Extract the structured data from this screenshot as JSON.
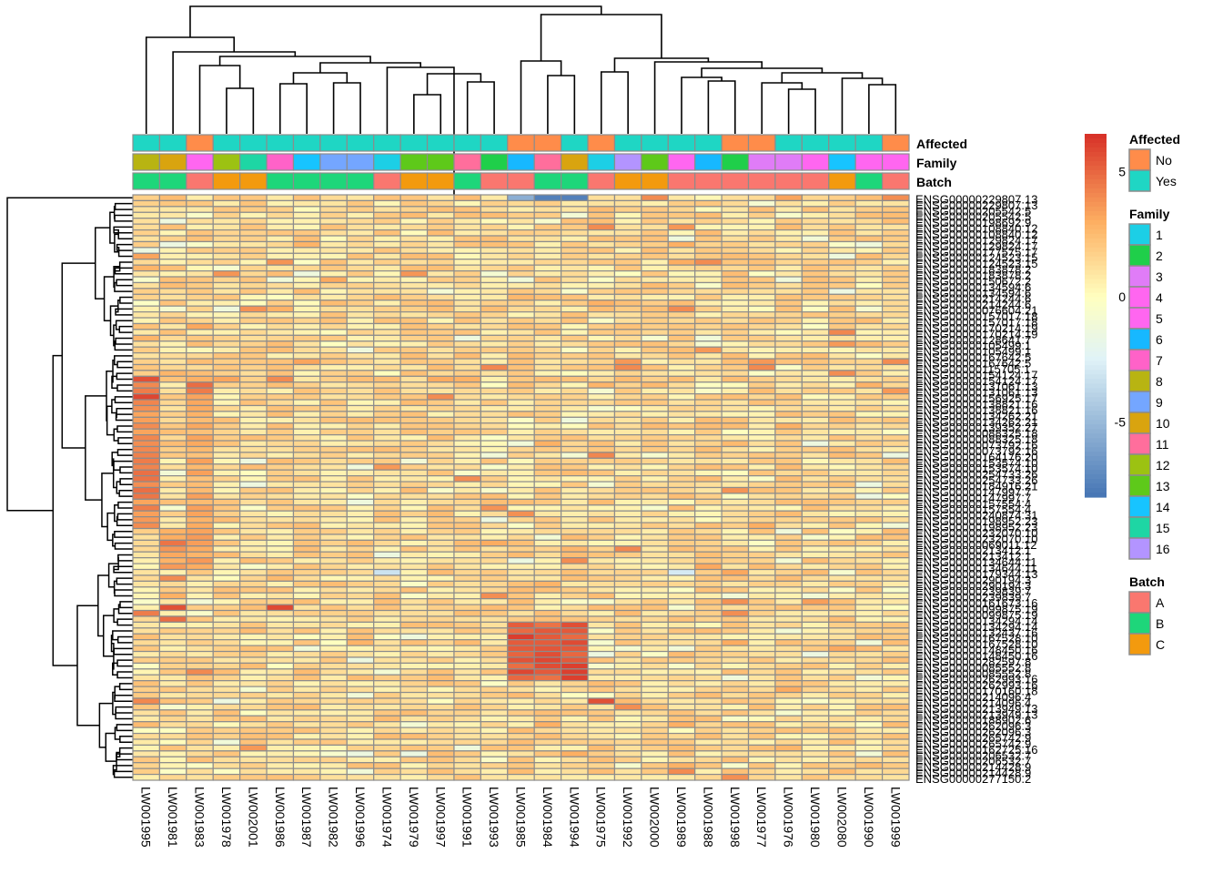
{
  "chart_data": {
    "type": "heatmap",
    "title": "",
    "columns": [
      "LW001995",
      "LW001981",
      "LW001983",
      "LW001978",
      "LW002001",
      "LW001986",
      "LW001987",
      "LW001982",
      "LW001996",
      "LW001974",
      "LW001979",
      "LW001997",
      "LW001991",
      "LW001993",
      "LW001985",
      "LW001984",
      "LW001994",
      "LW001975",
      "LW001992",
      "LW002000",
      "LW001989",
      "LW001988",
      "LW001998",
      "LW001977",
      "LW001976",
      "LW001980",
      "LW002080",
      "LW001990",
      "LW001999"
    ],
    "annotations": {
      "Affected": [
        "Yes",
        "Yes",
        "No",
        "Yes",
        "Yes",
        "Yes",
        "Yes",
        "Yes",
        "Yes",
        "Yes",
        "Yes",
        "Yes",
        "Yes",
        "Yes",
        "No",
        "No",
        "Yes",
        "No",
        "Yes",
        "Yes",
        "Yes",
        "Yes",
        "No",
        "No",
        "Yes",
        "Yes",
        "Yes",
        "Yes",
        "No"
      ],
      "Family": [
        "8",
        "10",
        "5",
        "12",
        "15",
        "7",
        "14",
        "9",
        "9",
        "1",
        "13",
        "13",
        "11",
        "2",
        "6",
        "11",
        "10",
        "1",
        "16",
        "13",
        "5",
        "6",
        "2",
        "3",
        "3",
        "4",
        "14",
        "5",
        "5"
      ],
      "Batch": [
        "B",
        "B",
        "A",
        "C",
        "C",
        "B",
        "B",
        "B",
        "B",
        "A",
        "C",
        "C",
        "B",
        "A",
        "A",
        "B",
        "B",
        "A",
        "C",
        "C",
        "A",
        "A",
        "A",
        "A",
        "A",
        "A",
        "C",
        "B",
        "A"
      ]
    },
    "annotation_order": [
      "Affected",
      "Family",
      "Batch"
    ],
    "row_labels_visible": [
      "ENSG00000229807.13",
      "ENSG00000205542.5",
      "ENSG00000198692.9",
      "ENSG00000108840.12",
      "ENSG00000129824.17",
      "ENSG00000177575.17",
      "ENSG00000124523.15",
      "ENSG00000183878.2",
      "ENSG00000150672.2",
      "ENSG00000134594.6",
      "ENSG00000214244.6",
      "ENSG00000076604.21",
      "ENSG00000157017.18",
      "ENSG00000170214.19",
      "ENSG00000128641.7",
      "ENSG00000105499.1",
      "ENSG00000167642.5",
      "ENSG00000115705.1",
      "ENSG00000154124.17",
      "ENSG00000131061.13",
      "ENSG00000156925.17",
      "ENSG00000138821.16",
      "ENSG00000134262.21",
      "ENSG00000139352.27",
      "ENSG00000088325.18",
      "ENSG00000073792.16",
      "ENSG00000164176.20",
      "ENSG00000153574.10",
      "ENSG00000254733.26",
      "ENSG00000184916.21",
      "ENSG00000147997.7",
      "ENSG00000157554.4",
      "ENSG00000240874.31",
      "ENSG00000198952.23",
      "ENSG00000232070.10",
      "ENSG00000069011.12",
      "ENSG00000213412.1",
      "ENSG00000134644.11",
      "ENSG00000179344.13",
      "ENSG00000290194.3",
      "ENSG00000239839.7",
      "ENSG00000161673.16",
      "ENSG00000099875.19",
      "ENSG00000134294.14",
      "ENSG00000132437.16",
      "ENSG00000167528.10",
      "ENSG00000148450.16",
      "ENSG00000282597.8",
      "ENSG00000085552.8",
      "ENSG00000262993.16",
      "ENSG00000170160.18",
      "ENSG00000214096.4",
      "ENSG00000213949.13",
      "ENSG00000188902.6",
      "ENSG00000262096.3",
      "ENSG00000265742.9",
      "ENSG00000162725.16",
      "ENSG00000206532.7",
      "ENSG00000214428.9",
      "ENSG00000277150.2"
    ],
    "row_count": 100,
    "colorbar": {
      "ticks": [
        5,
        0,
        -5
      ],
      "range": [
        -8,
        6.5
      ],
      "colors": [
        "#4575b4",
        "#e0f3f8",
        "#ffffbf",
        "#fdae61",
        "#d73027"
      ]
    },
    "legends": {
      "Affected": [
        {
          "label": "No",
          "color": "#ff8c4a"
        },
        {
          "label": "Yes",
          "color": "#1fd6c4"
        }
      ],
      "Family": [
        {
          "label": "1",
          "color": "#1ccfe6"
        },
        {
          "label": "2",
          "color": "#1fcf4a"
        },
        {
          "label": "3",
          "color": "#e07cf7"
        },
        {
          "label": "4",
          "color": "#ff66f0"
        },
        {
          "label": "5",
          "color": "#ff66f0"
        },
        {
          "label": "6",
          "color": "#17b8ff"
        },
        {
          "label": "7",
          "color": "#ff62c8"
        },
        {
          "label": "8",
          "color": "#b8b412"
        },
        {
          "label": "9",
          "color": "#74a6ff"
        },
        {
          "label": "10",
          "color": "#d9a40f"
        },
        {
          "label": "11",
          "color": "#ff6e9c"
        },
        {
          "label": "12",
          "color": "#9cc212"
        },
        {
          "label": "13",
          "color": "#5ec91a"
        },
        {
          "label": "14",
          "color": "#17c4ff"
        },
        {
          "label": "15",
          "color": "#1ed6a4"
        },
        {
          "label": "16",
          "color": "#b394ff"
        }
      ],
      "Batch": [
        {
          "label": "A",
          "color": "#fa776f"
        },
        {
          "label": "B",
          "color": "#1ed67a"
        },
        {
          "label": "C",
          "color": "#f39a0e"
        }
      ]
    },
    "highlights": [
      {
        "rows": "top row",
        "columns": [
          "LW001985",
          "LW001984",
          "LW001994"
        ],
        "value": "strongly negative (~-7)"
      },
      {
        "rows": "block near bottom (~rows 74-82)",
        "columns": [
          "LW001985",
          "LW001984",
          "LW001994"
        ],
        "value": "strongly positive (~5-6)"
      },
      {
        "rows": "mid block (~rows 30-55)",
        "columns": [
          "LW001995",
          "LW001983"
        ],
        "value": "positive (~3-5)"
      }
    ]
  }
}
